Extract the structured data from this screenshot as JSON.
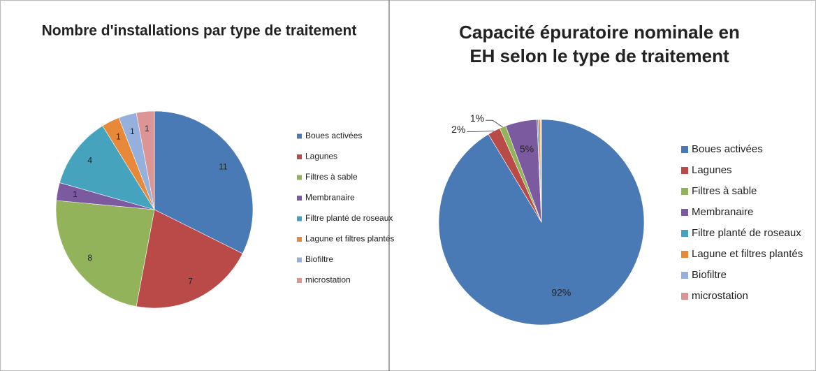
{
  "chart_data": [
    {
      "type": "pie",
      "title": "Nombre d'installations par type de traitement",
      "categories": [
        "Boues activées",
        "Lagunes",
        "Filtres à sable",
        "Membranaire",
        "Filtre planté de roseaux",
        "Lagune et filtres plantés",
        "Biofiltre",
        "microstation"
      ],
      "values": [
        11,
        7,
        8,
        1,
        4,
        1,
        1,
        1
      ],
      "colors": [
        "#4a7ab5",
        "#b94a48",
        "#93b35a",
        "#7b5aa0",
        "#45a3bd",
        "#e8893a",
        "#95b0dc",
        "#db9595"
      ],
      "legend": "right"
    },
    {
      "type": "pie",
      "title": "Capacité épuratoire nominale en EH selon le type de traitement",
      "categories": [
        "Boues activées",
        "Lagunes",
        "Filtres à sable",
        "Membranaire",
        "Filtre planté de roseaux",
        "Lagune et filtres plantés",
        "Biofiltre",
        "microstation"
      ],
      "values": [
        92,
        2,
        1,
        5,
        0.2,
        0.3,
        0.1,
        0.1
      ],
      "value_labels": [
        "92%",
        "2%",
        "1%",
        "5%",
        null,
        null,
        null,
        null
      ],
      "colors": [
        "#4a7ab5",
        "#b94a48",
        "#93b35a",
        "#7b5aa0",
        "#45a3bd",
        "#e8893a",
        "#95b0dc",
        "#db9595"
      ],
      "legend": "right"
    }
  ]
}
